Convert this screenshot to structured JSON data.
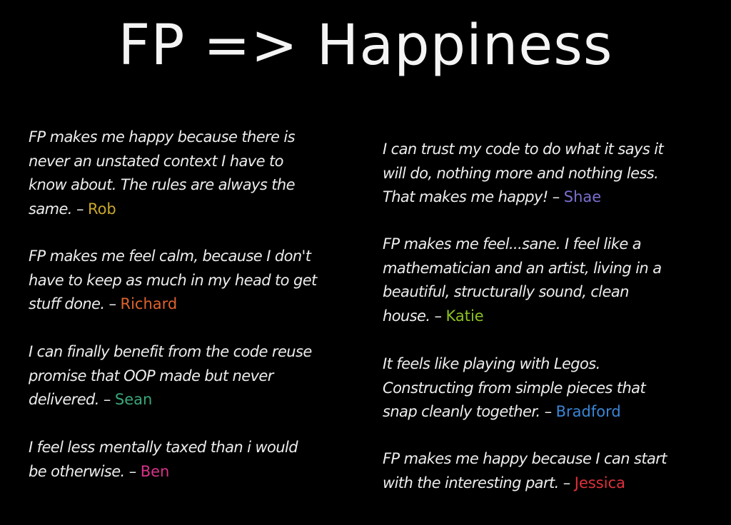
{
  "slide": {
    "title": "FP => Happiness"
  },
  "quotes_left": [
    {
      "lines": [
        "FP makes me happy because there is",
        "never an unstated context I have to",
        "know about. The rules are always the",
        "same."
      ],
      "author": "Rob",
      "color": "#c9a72a"
    },
    {
      "lines": [
        "FP makes me feel calm, because I don't",
        "have to keep as much in my head to get",
        "stuff done."
      ],
      "author": "Richard",
      "color": "#e0622c"
    },
    {
      "lines": [
        "I can finally benefit from the code reuse",
        "promise that OOP made but never",
        "delivered."
      ],
      "author": "Sean",
      "color": "#3aa77a"
    },
    {
      "lines": [
        "I feel less mentally taxed than i would",
        "be otherwise."
      ],
      "author": "Ben",
      "color": "#d8338a"
    }
  ],
  "quotes_right": [
    {
      "lines": [
        "I can trust my code to do what it says it",
        "will do, nothing more and nothing less.",
        "That makes me happy!"
      ],
      "author": "Shae",
      "color": "#7a6fd0"
    },
    {
      "lines": [
        "FP makes me feel...sane. I feel like a",
        "mathematician and an artist, living in a",
        "beautiful, structurally sound, clean",
        "house."
      ],
      "author": "Katie",
      "color": "#8cc21f"
    },
    {
      "lines": [
        "It feels like playing with Legos.",
        "Constructing from simple pieces that",
        "snap cleanly together."
      ],
      "author": "Bradford",
      "color": "#3a86d6"
    },
    {
      "lines": [
        "FP makes me happy because I can start",
        "with the interesting part."
      ],
      "author": "Jessica",
      "color": "#e0303c"
    }
  ],
  "separator": "–"
}
